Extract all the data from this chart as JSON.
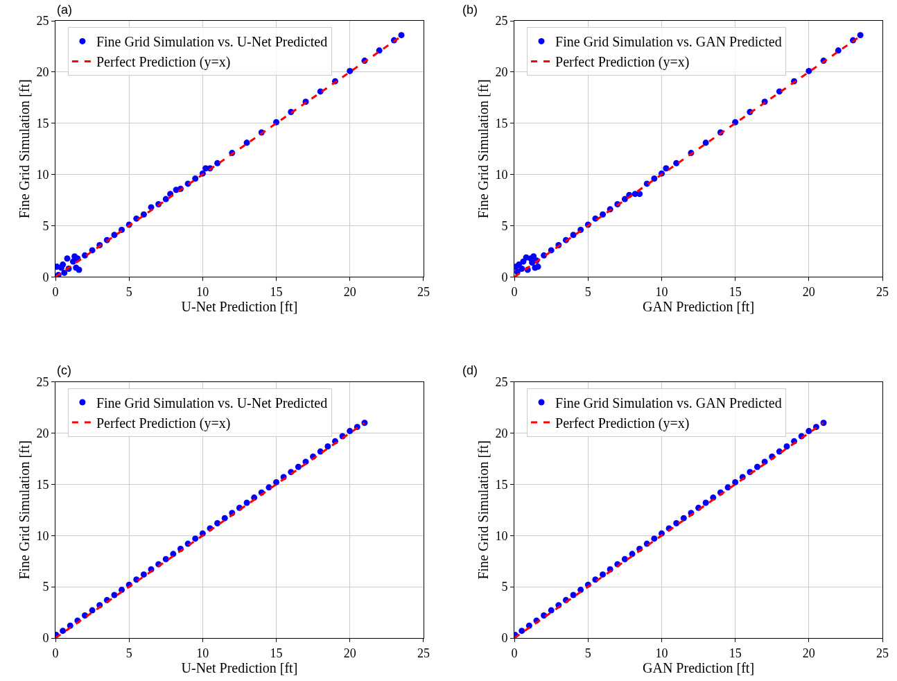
{
  "chart_data": [
    {
      "type": "scatter",
      "title": "(a)",
      "xlabel": "U-Net Prediction [ft]",
      "ylabel": "Fine Grid Simulation [ft]",
      "xlim": [
        0,
        25
      ],
      "ylim": [
        0,
        25
      ],
      "xticks": [
        0,
        5,
        10,
        15,
        20,
        25
      ],
      "yticks": [
        0,
        5,
        10,
        15,
        20,
        25
      ],
      "grid": true,
      "legend": "top left",
      "series": [
        {
          "name": "Fine Grid Simulation vs. U-Net Predicted",
          "color": "#0000ff",
          "marker": "circle",
          "x": [
            0.1,
            0.2,
            0.4,
            0.5,
            0.6,
            0.8,
            0.9,
            1.2,
            1.3,
            1.4,
            1.5,
            1.6,
            2,
            2.5,
            3,
            3.5,
            4,
            4.5,
            5,
            5.5,
            6,
            6.5,
            7,
            7.5,
            7.8,
            8.2,
            8.5,
            9,
            9.5,
            10,
            10.2,
            10.5,
            11,
            12,
            13,
            14,
            15,
            16,
            17,
            18,
            19,
            20,
            21,
            22,
            23,
            23.5
          ],
          "values": [
            1.0,
            0.2,
            0.9,
            1.2,
            0.4,
            1.8,
            0.8,
            1.5,
            2.0,
            0.9,
            1.8,
            0.7,
            2.1,
            2.6,
            3.1,
            3.6,
            4.1,
            4.6,
            5.1,
            5.7,
            6.1,
            6.8,
            7.1,
            7.6,
            8.1,
            8.5,
            8.6,
            9.1,
            9.6,
            10.1,
            10.6,
            10.6,
            11.1,
            12.1,
            13.1,
            14.1,
            15.1,
            16.1,
            17.1,
            18.1,
            19.1,
            20.1,
            21.1,
            22.1,
            23.1,
            23.6
          ]
        },
        {
          "name": "Perfect Prediction (y=x)",
          "type": "line",
          "color": "#ff0000",
          "line_style": "dashed",
          "marker": "none",
          "x": [
            0,
            23.5
          ],
          "values": [
            0,
            23.5
          ]
        }
      ]
    },
    {
      "type": "scatter",
      "title": "(b)",
      "xlabel": "GAN Prediction [ft]",
      "ylabel": "Fine Grid Simulation [ft]",
      "xlim": [
        0,
        25
      ],
      "ylim": [
        0,
        25
      ],
      "xticks": [
        0,
        5,
        10,
        15,
        20,
        25
      ],
      "yticks": [
        0,
        5,
        10,
        15,
        20,
        25
      ],
      "grid": true,
      "legend": "top left",
      "series": [
        {
          "name": "Fine Grid Simulation vs. GAN Predicted",
          "color": "#0000ff",
          "marker": "circle",
          "x": [
            0.1,
            0.2,
            0.3,
            0.5,
            0.6,
            0.8,
            0.9,
            1.1,
            1.2,
            1.3,
            1.4,
            1.5,
            1.6,
            2,
            2.5,
            3,
            3.5,
            4,
            4.5,
            5,
            5.5,
            6,
            6.5,
            7,
            7.5,
            7.8,
            8.2,
            8.5,
            9,
            9.5,
            10,
            10.3,
            11,
            12,
            13,
            14,
            15,
            16,
            17,
            18,
            19,
            20,
            21,
            22,
            23,
            23.5
          ],
          "values": [
            1.0,
            0.5,
            1.2,
            0.8,
            1.5,
            1.9,
            0.7,
            1.8,
            1.4,
            2.0,
            0.9,
            1.6,
            1.0,
            2.1,
            2.6,
            3.1,
            3.6,
            4.1,
            4.6,
            5.1,
            5.7,
            6.1,
            6.6,
            7.1,
            7.6,
            8.0,
            8.1,
            8.1,
            9.1,
            9.6,
            10.1,
            10.6,
            11.1,
            12.1,
            13.1,
            14.1,
            15.1,
            16.1,
            17.1,
            18.1,
            19.1,
            20.1,
            21.1,
            22.1,
            23.1,
            23.6
          ]
        },
        {
          "name": "Perfect Prediction (y=x)",
          "type": "line",
          "color": "#ff0000",
          "line_style": "dashed",
          "marker": "none",
          "x": [
            0,
            23.5
          ],
          "values": [
            0,
            23.5
          ]
        }
      ]
    },
    {
      "type": "scatter",
      "title": "(c)",
      "xlabel": "U-Net Prediction [ft]",
      "ylabel": "Fine Grid Simulation [ft]",
      "xlim": [
        0,
        25
      ],
      "ylim": [
        0,
        25
      ],
      "xticks": [
        0,
        5,
        10,
        15,
        20,
        25
      ],
      "yticks": [
        0,
        5,
        10,
        15,
        20,
        25
      ],
      "grid": true,
      "legend": "top left",
      "series": [
        {
          "name": "Fine Grid Simulation vs. U-Net Predicted",
          "color": "#0000ff",
          "marker": "circle",
          "x": [
            0.05,
            0.5,
            1,
            1.5,
            2,
            2.5,
            3,
            3.5,
            4,
            4.5,
            5,
            5.5,
            6,
            6.5,
            7,
            7.5,
            8,
            8.5,
            9,
            9.5,
            10,
            10.5,
            11,
            11.5,
            12,
            12.5,
            13,
            13.5,
            14,
            14.5,
            15,
            15.5,
            16,
            16.5,
            17,
            17.5,
            18,
            18.5,
            19,
            19.5,
            20,
            20.5,
            21
          ],
          "values": [
            0.3,
            0.7,
            1.2,
            1.7,
            2.2,
            2.7,
            3.2,
            3.7,
            4.2,
            4.7,
            5.2,
            5.7,
            6.2,
            6.7,
            7.2,
            7.7,
            8.2,
            8.7,
            9.2,
            9.7,
            10.2,
            10.7,
            11.2,
            11.7,
            12.2,
            12.7,
            13.2,
            13.7,
            14.2,
            14.7,
            15.2,
            15.7,
            16.2,
            16.7,
            17.2,
            17.7,
            18.2,
            18.7,
            19.2,
            19.7,
            20.2,
            20.6,
            21.0
          ]
        },
        {
          "name": "Perfect Prediction (y=x)",
          "type": "line",
          "color": "#ff0000",
          "line_style": "dashed",
          "marker": "none",
          "x": [
            0,
            21
          ],
          "values": [
            0,
            21
          ]
        }
      ]
    },
    {
      "type": "scatter",
      "title": "(d)",
      "xlabel": "GAN Prediction [ft]",
      "ylabel": "Fine Grid Simulation [ft]",
      "xlim": [
        0,
        25
      ],
      "ylim": [
        0,
        25
      ],
      "xticks": [
        0,
        5,
        10,
        15,
        20,
        25
      ],
      "yticks": [
        0,
        5,
        10,
        15,
        20,
        25
      ],
      "grid": true,
      "legend": "top left",
      "series": [
        {
          "name": "Fine Grid Simulation vs. GAN Predicted",
          "color": "#0000ff",
          "marker": "circle",
          "x": [
            0.05,
            0.5,
            1,
            1.5,
            2,
            2.5,
            3,
            3.5,
            4,
            4.5,
            5,
            5.5,
            6,
            6.5,
            7,
            7.5,
            8,
            8.5,
            9,
            9.5,
            10,
            10.5,
            11,
            11.5,
            12,
            12.5,
            13,
            13.5,
            14,
            14.5,
            15,
            15.5,
            16,
            16.5,
            17,
            17.5,
            18,
            18.5,
            19,
            19.5,
            20,
            20.5,
            21
          ],
          "values": [
            0.3,
            0.7,
            1.2,
            1.7,
            2.2,
            2.7,
            3.2,
            3.7,
            4.2,
            4.7,
            5.2,
            5.7,
            6.2,
            6.7,
            7.2,
            7.7,
            8.2,
            8.7,
            9.2,
            9.7,
            10.2,
            10.7,
            11.2,
            11.7,
            12.2,
            12.7,
            13.2,
            13.7,
            14.2,
            14.7,
            15.2,
            15.7,
            16.2,
            16.7,
            17.2,
            17.7,
            18.2,
            18.7,
            19.2,
            19.7,
            20.2,
            20.6,
            21.0
          ]
        },
        {
          "name": "Perfect Prediction (y=x)",
          "type": "line",
          "color": "#ff0000",
          "line_style": "dashed",
          "marker": "none",
          "x": [
            0,
            21
          ],
          "values": [
            0,
            21
          ]
        }
      ]
    }
  ]
}
